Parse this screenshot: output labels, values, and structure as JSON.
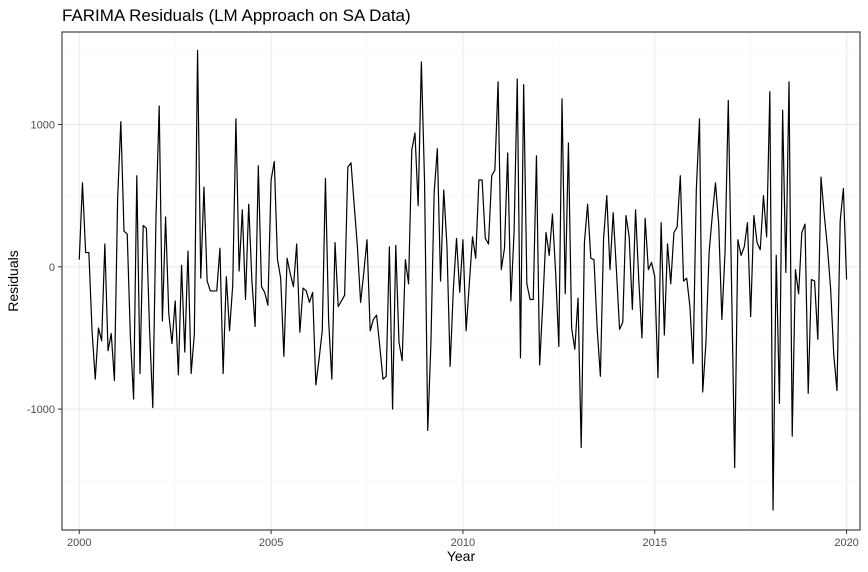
{
  "chart_data": {
    "type": "line",
    "title": "FARIMA Residuals (LM Approach on SA Data)",
    "xlabel": "Year",
    "ylabel": "Residuals",
    "xlim": [
      1999.55,
      2020.35
    ],
    "ylim": [
      -1850,
      1650
    ],
    "x_major_ticks": [
      2000,
      2005,
      2010,
      2015,
      2020
    ],
    "x_tick_labels": [
      "2000",
      "2005",
      "2010",
      "2015",
      "2020"
    ],
    "y_major_ticks": [
      -1000,
      0,
      1000
    ],
    "y_tick_labels": [
      "-1000",
      "0",
      "1000"
    ],
    "x_minor_ticks": [
      2002.5,
      2007.5,
      2012.5,
      2017.5
    ],
    "y_minor_ticks": [
      -1500,
      -500,
      500,
      1500
    ],
    "grid": true,
    "legend": "none",
    "line_color": "#000000",
    "start": 2000.0,
    "frequency": 12,
    "series": [
      {
        "values": [
          50,
          590,
          100,
          100,
          -450,
          -790,
          -430,
          -520,
          160,
          -590,
          -470,
          -800,
          480,
          1020,
          250,
          230,
          -500,
          -930,
          640,
          -750,
          290,
          270,
          -450,
          -990,
          350,
          1130,
          -380,
          350,
          -330,
          -540,
          -240,
          -760,
          10,
          -600,
          110,
          -750,
          -470,
          1520,
          -80,
          560,
          -100,
          -170,
          -170,
          -170,
          130,
          -750,
          -70,
          -450,
          -130,
          1040,
          -30,
          400,
          -230,
          440,
          -100,
          -420,
          710,
          -140,
          -180,
          -270,
          610,
          740,
          50,
          -80,
          -630,
          60,
          -50,
          -140,
          160,
          -460,
          -150,
          -170,
          -250,
          -180,
          -830,
          -650,
          -450,
          620,
          -380,
          -790,
          170,
          -280,
          -240,
          -200,
          700,
          730,
          430,
          140,
          -250,
          -40,
          190,
          -450,
          -370,
          -340,
          -560,
          -790,
          -770,
          140,
          -1000,
          150,
          -530,
          -660,
          50,
          -120,
          820,
          940,
          430,
          1440,
          600,
          -1150,
          -530,
          520,
          830,
          -100,
          540,
          150,
          -700,
          -160,
          200,
          -180,
          190,
          -450,
          -120,
          210,
          60,
          610,
          610,
          200,
          160,
          640,
          680,
          1300,
          -20,
          130,
          800,
          -240,
          240,
          1320,
          -640,
          1280,
          -120,
          -230,
          -230,
          780,
          -690,
          -250,
          240,
          80,
          370,
          -40,
          -560,
          1180,
          -190,
          870,
          -430,
          -580,
          -220,
          -1270,
          170,
          440,
          60,
          50,
          -440,
          -770,
          200,
          500,
          -20,
          380,
          -20,
          -440,
          -390,
          360,
          210,
          -300,
          400,
          -90,
          -500,
          340,
          -20,
          30,
          -70,
          -780,
          310,
          -480,
          160,
          -120,
          240,
          280,
          640,
          -100,
          -80,
          -280,
          -680,
          540,
          1040,
          -880,
          -540,
          100,
          360,
          590,
          300,
          -370,
          110,
          1170,
          -90,
          -1410,
          190,
          80,
          140,
          310,
          -350,
          360,
          170,
          120,
          500,
          210,
          1230,
          -1710,
          80,
          -960,
          1100,
          -40,
          1300,
          -1190,
          -20,
          -190,
          240,
          300,
          -890,
          -90,
          -100,
          -510,
          630,
          370,
          140,
          -150,
          -620,
          -870,
          320,
          550,
          -90
        ]
      }
    ]
  }
}
